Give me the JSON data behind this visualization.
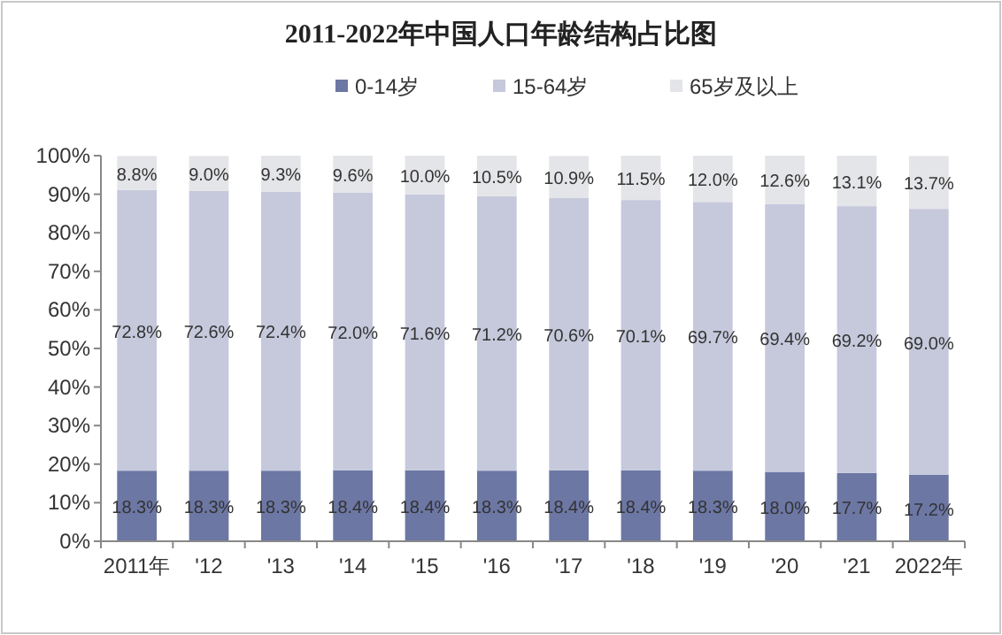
{
  "chart_data": {
    "type": "bar",
    "title": "2011-2022年中国人口年龄结构占比图",
    "stacked": true,
    "legend": "top",
    "grid": false,
    "categories": [
      "2011年",
      "'12",
      "'13",
      "'14",
      "'15",
      "'16",
      "'17",
      "'18",
      "'19",
      "'20",
      "'21",
      "2022年"
    ],
    "ylim": [
      0,
      100
    ],
    "yticks": [
      {
        "value": 0,
        "label": "0%"
      },
      {
        "value": 10,
        "label": "10%"
      },
      {
        "value": 20,
        "label": "20%"
      },
      {
        "value": 30,
        "label": "30%"
      },
      {
        "value": 40,
        "label": "40%"
      },
      {
        "value": 50,
        "label": "50%"
      },
      {
        "value": 60,
        "label": "60%"
      },
      {
        "value": 70,
        "label": "70%"
      },
      {
        "value": 80,
        "label": "80%"
      },
      {
        "value": 90,
        "label": "90%"
      },
      {
        "value": 100,
        "label": "100%"
      }
    ],
    "series": [
      {
        "name": "0-14岁",
        "color": "#6c77a4",
        "values": [
          18.3,
          18.3,
          18.3,
          18.4,
          18.4,
          18.3,
          18.4,
          18.4,
          18.3,
          18.0,
          17.7,
          17.2
        ],
        "value_labels": [
          "18.3%",
          "18.3%",
          "18.3%",
          "18.4%",
          "18.4%",
          "18.3%",
          "18.4%",
          "18.4%",
          "18.3%",
          "18.0%",
          "17.7%",
          "17.2%"
        ]
      },
      {
        "name": "15-64岁",
        "color": "#c6c9dc",
        "values": [
          72.8,
          72.6,
          72.4,
          72.0,
          71.6,
          71.2,
          70.6,
          70.1,
          69.7,
          69.4,
          69.2,
          69.0
        ],
        "value_labels": [
          "72.8%",
          "72.6%",
          "72.4%",
          "72.0%",
          "71.6%",
          "71.2%",
          "70.6%",
          "70.1%",
          "69.7%",
          "69.4%",
          "69.2%",
          "69.0%"
        ]
      },
      {
        "name": "65岁及以上",
        "color": "#e4e5e8",
        "values": [
          8.8,
          9.0,
          9.3,
          9.6,
          10.0,
          10.5,
          10.9,
          11.5,
          12.0,
          12.6,
          13.1,
          13.7
        ],
        "value_labels": [
          "8.8%",
          "9.0%",
          "9.3%",
          "9.6%",
          "10.0%",
          "10.5%",
          "10.9%",
          "11.5%",
          "12.0%",
          "12.6%",
          "13.1%",
          "13.7%"
        ]
      }
    ]
  }
}
